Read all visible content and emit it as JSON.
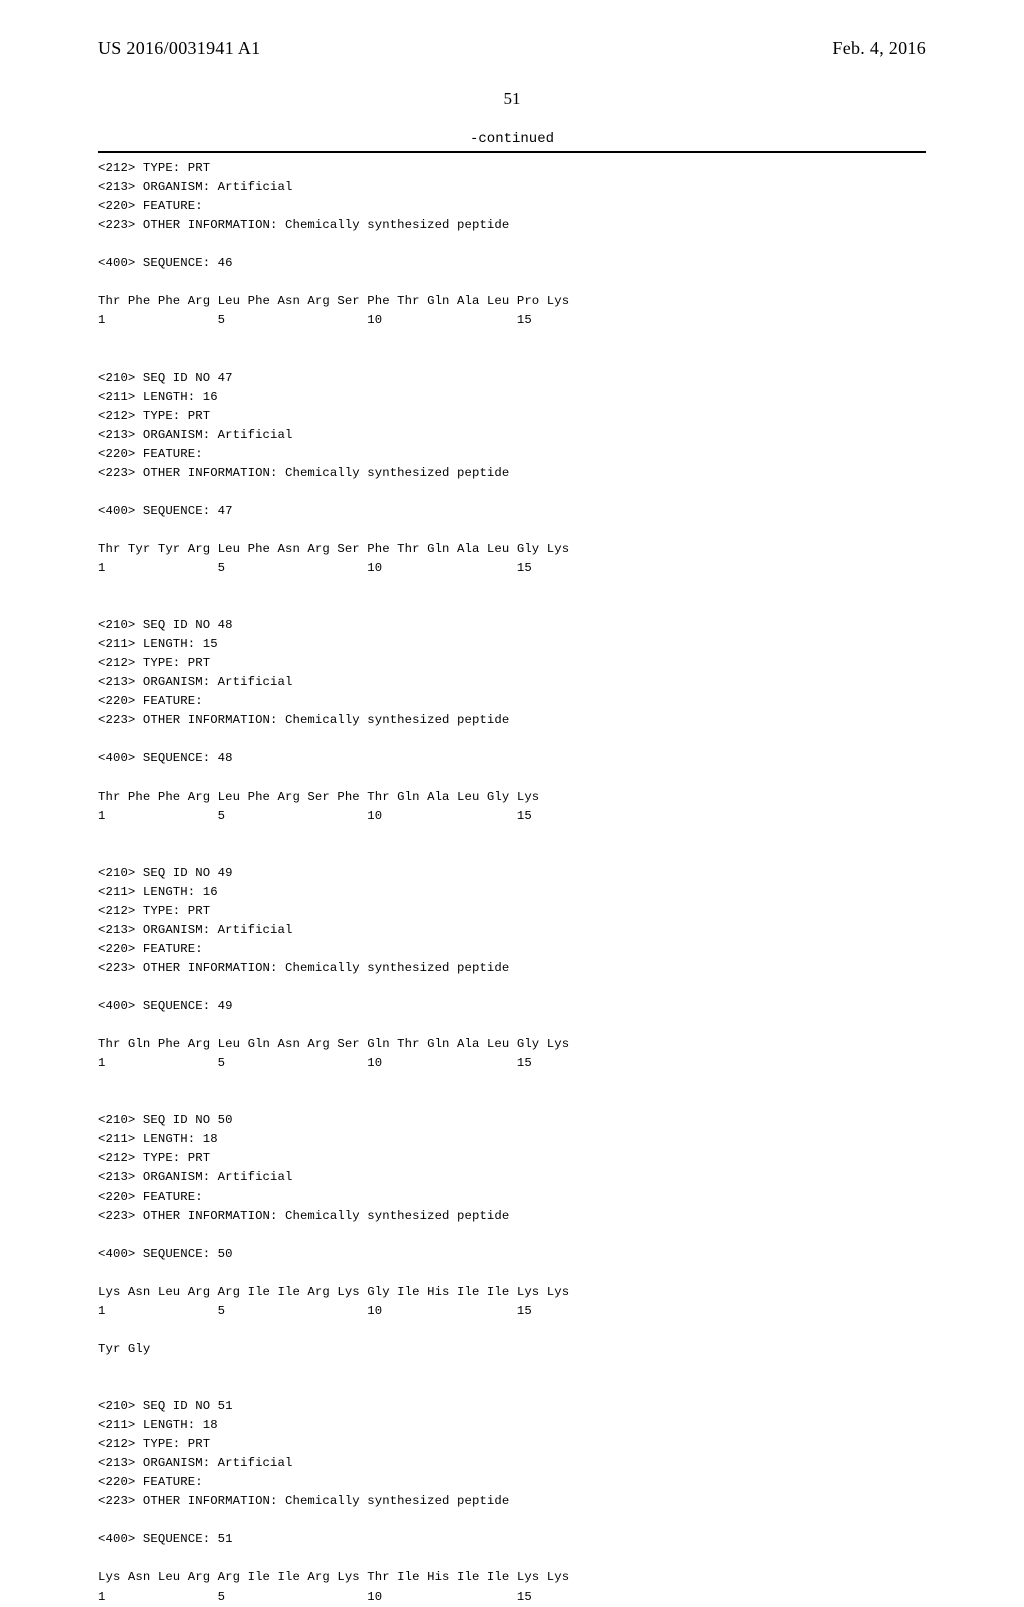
{
  "header": {
    "publication_number": "US 2016/0031941 A1",
    "publication_date": "Feb. 4, 2016"
  },
  "page_number": "51",
  "continued_label": "-continued",
  "sequence_text": "<212> TYPE: PRT\n<213> ORGANISM: Artificial\n<220> FEATURE:\n<223> OTHER INFORMATION: Chemically synthesized peptide\n\n<400> SEQUENCE: 46\n\nThr Phe Phe Arg Leu Phe Asn Arg Ser Phe Thr Gln Ala Leu Pro Lys\n1               5                   10                  15\n\n\n<210> SEQ ID NO 47\n<211> LENGTH: 16\n<212> TYPE: PRT\n<213> ORGANISM: Artificial\n<220> FEATURE:\n<223> OTHER INFORMATION: Chemically synthesized peptide\n\n<400> SEQUENCE: 47\n\nThr Tyr Tyr Arg Leu Phe Asn Arg Ser Phe Thr Gln Ala Leu Gly Lys\n1               5                   10                  15\n\n\n<210> SEQ ID NO 48\n<211> LENGTH: 15\n<212> TYPE: PRT\n<213> ORGANISM: Artificial\n<220> FEATURE:\n<223> OTHER INFORMATION: Chemically synthesized peptide\n\n<400> SEQUENCE: 48\n\nThr Phe Phe Arg Leu Phe Arg Ser Phe Thr Gln Ala Leu Gly Lys\n1               5                   10                  15\n\n\n<210> SEQ ID NO 49\n<211> LENGTH: 16\n<212> TYPE: PRT\n<213> ORGANISM: Artificial\n<220> FEATURE:\n<223> OTHER INFORMATION: Chemically synthesized peptide\n\n<400> SEQUENCE: 49\n\nThr Gln Phe Arg Leu Gln Asn Arg Ser Gln Thr Gln Ala Leu Gly Lys\n1               5                   10                  15\n\n\n<210> SEQ ID NO 50\n<211> LENGTH: 18\n<212> TYPE: PRT\n<213> ORGANISM: Artificial\n<220> FEATURE:\n<223> OTHER INFORMATION: Chemically synthesized peptide\n\n<400> SEQUENCE: 50\n\nLys Asn Leu Arg Arg Ile Ile Arg Lys Gly Ile His Ile Ile Lys Lys\n1               5                   10                  15\n\nTyr Gly\n\n\n<210> SEQ ID NO 51\n<211> LENGTH: 18\n<212> TYPE: PRT\n<213> ORGANISM: Artificial\n<220> FEATURE:\n<223> OTHER INFORMATION: Chemically synthesized peptide\n\n<400> SEQUENCE: 51\n\nLys Asn Leu Arg Arg Ile Ile Arg Lys Thr Ile His Ile Ile Lys Lys\n1               5                   10                  15"
}
